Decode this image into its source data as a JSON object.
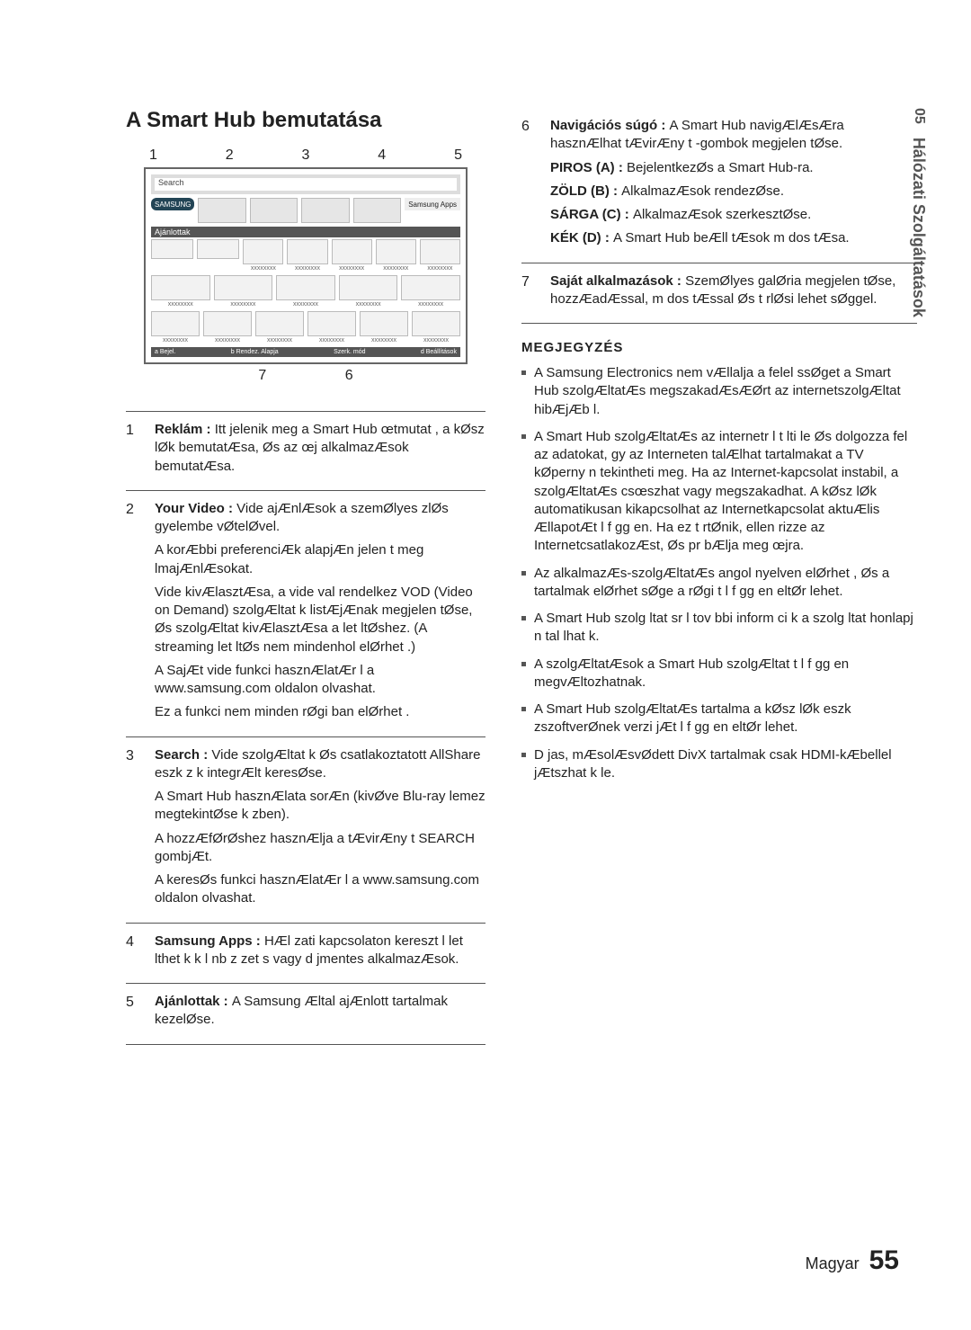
{
  "side": {
    "section_num": "05",
    "section_title": "Hálózati Szolgáltatások"
  },
  "title": "A Smart Hub bemutatása",
  "diagram": {
    "top_labels": [
      "1",
      "2",
      "3",
      "4",
      "5"
    ],
    "bot_labels": [
      "7",
      "6"
    ],
    "search_label": "Search",
    "logo": "SAMSUNG",
    "apps_btn": "Samsung Apps",
    "rec_bar": "Ajánlottak",
    "placeholder": "xxxxxxxx",
    "footer_items": [
      "a  Bejel.",
      "b  Rendez. Alapja",
      "Szerk. mód",
      "d  Beállítások"
    ]
  },
  "items": [
    {
      "n": "1",
      "lead": "Reklám : ",
      "rest": "Itt jelenik meg a Smart Hub œtmutat , a kØsz lØk bemutatÆsa, Øs az œj alkalmazÆsok bemutatÆsa."
    },
    {
      "n": "2",
      "lead": "Your Video : ",
      "rest": "Vide ajÆnlÆsok a szemØlyes zlØs gyelembe vØtelØvel.",
      "extra": [
        "A korÆbbi preferenciÆk alapjÆn jelen t meg lmajÆnlÆsokat.",
        "Vide kivÆlasztÆsa, a vide val rendelkez VOD (Video on Demand) szolgÆltat k listÆjÆnak megjelen tØse, Øs szolgÆltat kivÆlasztÆsa a let ltØshez. (A streaming let ltØs nem mindenhol elØrhet .)",
        "A SajÆt vide funkci  hasznÆlatÆr l a www.samsung.com oldalon olvashat.",
        "Ez a funkci  nem minden rØgi ban elØrhet ."
      ]
    },
    {
      "n": "3",
      "lead": "Search : ",
      "rest": "Vide szolgÆltat k Øs csatlakoztatott AllShare eszk z k integrÆlt keresØse.",
      "extra": [
        "A Smart Hub hasznÆlata sorÆn (kivØve Blu-ray lemez megtekintØse k zben).",
        "A hozzÆfØrØshez hasznÆlja a tÆvirÆny t SEARCH gombjÆt.",
        "A keresØs funkci  hasznÆlatÆr l a www.samsung.com oldalon olvashat."
      ]
    },
    {
      "n": "4",
      "lead": "Samsung Apps : ",
      "rest": "HÆl zati kapcsolaton kereszt l let lthet k k l nb z  zet s vagy d jmentes alkalmazÆsok."
    },
    {
      "n": "5",
      "lead": "Ajánlottak : ",
      "rest": "A Samsung Æltal ajÆnlott tartalmak kezelØse."
    }
  ],
  "items_r": [
    {
      "n": "6",
      "lines": [
        {
          "b": "Navigációs súgó : ",
          "t": "A Smart Hub navigÆlÆsÆra hasznÆlhat tÆvirÆny t -gombok megjelen tØse."
        },
        {
          "b": "PIROS (A) : ",
          "t": "BejelentkezØs a Smart Hub-ra."
        },
        {
          "b": "ZÖLD (B) : ",
          "t": "AlkalmazÆsok rendezØse."
        },
        {
          "b": "SÁRGA (C) : ",
          "t": "AlkalmazÆsok szerkesztØse."
        },
        {
          "b": "KÉK (D) : ",
          "t": "A Smart Hub beÆll tÆsok m dos tÆsa."
        }
      ]
    },
    {
      "n": "7",
      "lines": [
        {
          "b": "Saját alkalmazások : ",
          "t": "SzemØlyes galØria megjelen tØse, hozzÆadÆssal, m dos tÆssal Øs t rlØsi lehet sØggel."
        }
      ]
    }
  ],
  "note_head": "MEGJEGYZÉS",
  "notes": [
    "A Samsung Electronics nem vÆllalja a felel ssØget a Smart Hub szolgÆltatÆs megszakadÆsÆØrt az internetszolgÆltat hibÆjÆb l.",
    "A Smart Hub szolgÆltatÆs az internetr l t lti le Øs dolgozza fel az adatokat,  gy az Interneten talÆlhat tartalmakat a TV kØperny n tekintheti meg.\nHa az Internet-kapcsolat instabil, a szolgÆltatÆs csœszhat vagy megszakadhat.\nA kØsz lØk automatikusan kikapcsolhat az Internetkapcsolat aktuÆlis ÆllapotÆt l f gg en. Ha ez t rtØnik, ellen rizze az InternetcsatlakozÆst, Øs pr bÆlja meg œjra.",
    "Az alkalmazÆs-szolgÆltatÆs angol nyelven elØrhet , Øs a tartalmak elØrhet sØge a rØgi t l f gg en eltØr  lehet.",
    "A Smart Hub szolg ltat sr l tov bbi inform ci k a szolg ltat  honlapj n tal lhat k.",
    "A szolgÆltatÆsok a  Smart Hub szolgÆltat t l f gg en megvÆltozhatnak.",
    "A Smart Hub szolgÆltatÆs tartalma a kØsz lØk eszk zszoftverØnek verzi jÆt l f gg en eltØr lehet.",
    "D jas, mÆsolÆsvØdett DivX tartalmak csak HDMI-kÆbellel jÆtszhat k le."
  ],
  "footer": {
    "lang": "Magyar",
    "page": "55"
  },
  "colors": {
    "rule": "#555555"
  }
}
